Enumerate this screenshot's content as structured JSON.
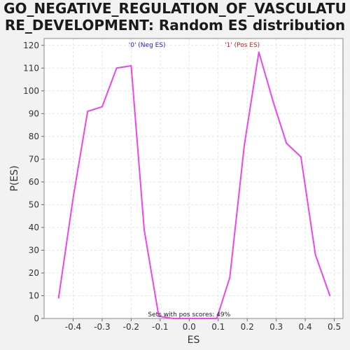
{
  "chart_data": {
    "type": "line",
    "title_lines": [
      "GO_NEGATIVE_REGULATION_OF_VASCULATU",
      "RE_DEVELOPMENT: Random ES distribution"
    ],
    "xlabel": "ES",
    "ylabel": "P(ES)",
    "xlim": [
      -0.5,
      0.53
    ],
    "ylim": [
      0,
      123
    ],
    "xticks": [
      -0.4,
      -0.3,
      -0.2,
      -0.1,
      0.0,
      0.1,
      0.2,
      0.3,
      0.4,
      0.5
    ],
    "xtick_labels": [
      "-0.4",
      "-0.3",
      "-0.2",
      "-0.1",
      "0.0",
      "0.1",
      "0.2",
      "0.3",
      "0.4",
      "0.5"
    ],
    "yticks": [
      0,
      10,
      20,
      30,
      40,
      50,
      60,
      70,
      80,
      90,
      100,
      110,
      120
    ],
    "ytick_labels": [
      "0",
      "10",
      "20",
      "30",
      "40",
      "50",
      "60",
      "70",
      "80",
      "90",
      "100",
      "110",
      "120"
    ],
    "grid": true,
    "series": [
      {
        "color": "#ee44ee",
        "x": [
          -0.45,
          -0.4,
          -0.35,
          -0.3,
          -0.25,
          -0.2,
          -0.155,
          -0.105,
          -0.055,
          -0.005,
          0.045,
          0.095,
          0.14,
          0.19,
          0.24,
          0.29,
          0.335,
          0.385,
          0.435,
          0.485
        ],
        "y": [
          9,
          53,
          91,
          93,
          110,
          111,
          39,
          1,
          0,
          0,
          0,
          0,
          18,
          76,
          117,
          95,
          77,
          71,
          28,
          10
        ]
      }
    ],
    "annotations": {
      "neg": {
        "text": "'0' (Neg ES)",
        "x": -0.145,
        "color": "#2222cc"
      },
      "pos": {
        "text": "'1' (Pos ES)",
        "x": 0.183,
        "color": "#cc2222"
      },
      "sets": {
        "text": "Sets with pos scores: 49%",
        "x": 0.0,
        "color": "#222222"
      }
    }
  }
}
